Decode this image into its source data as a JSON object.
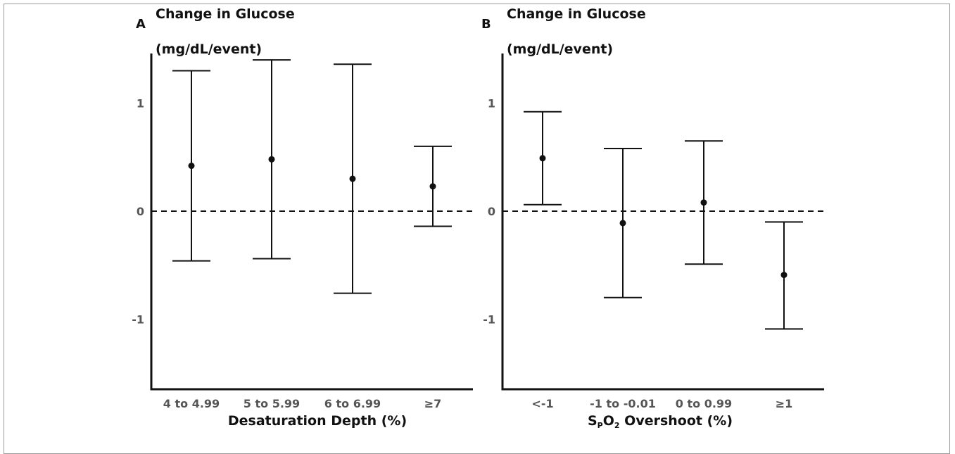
{
  "chart_data": [
    {
      "type": "errorbar",
      "panel_label": "A",
      "ylabel": "Change in Glucose (mg/dL/event)",
      "ylabel_lines": [
        "Change in Glucose",
        "(mg/dL/event)"
      ],
      "xlabel": "Desaturation Depth (%)",
      "categories": [
        "4 to 4.99",
        "5 to 5.99",
        "6 to 6.99",
        "≥7"
      ],
      "estimates": [
        0.42,
        0.48,
        0.3,
        0.23
      ],
      "lower": [
        -0.46,
        -0.44,
        -0.76,
        -0.14
      ],
      "upper": [
        1.3,
        1.4,
        1.36,
        0.6
      ],
      "yticks": [
        -1,
        0,
        1
      ],
      "ylim": [
        -1.65,
        1.48
      ],
      "reference_line": 0,
      "grid": false
    },
    {
      "type": "errorbar",
      "panel_label": "B",
      "ylabel": "Change in Glucose (mg/dL/event)",
      "ylabel_lines": [
        "Change in Glucose",
        "(mg/dL/event)"
      ],
      "xlabel": "SPO2 Overshoot (%)",
      "xlabel_parts": [
        "S",
        "P",
        "O",
        "2",
        " Overshoot (%)"
      ],
      "categories": [
        "<-1",
        "-1 to -0.01",
        "0 to 0.99",
        "≥1"
      ],
      "estimates": [
        0.49,
        -0.11,
        0.08,
        -0.59
      ],
      "lower": [
        0.06,
        -0.8,
        -0.49,
        -1.09
      ],
      "upper": [
        0.92,
        0.58,
        0.65,
        -0.1
      ],
      "yticks": [
        -1,
        0,
        1
      ],
      "ylim": [
        -1.65,
        1.48
      ],
      "reference_line": 0,
      "grid": false
    }
  ]
}
